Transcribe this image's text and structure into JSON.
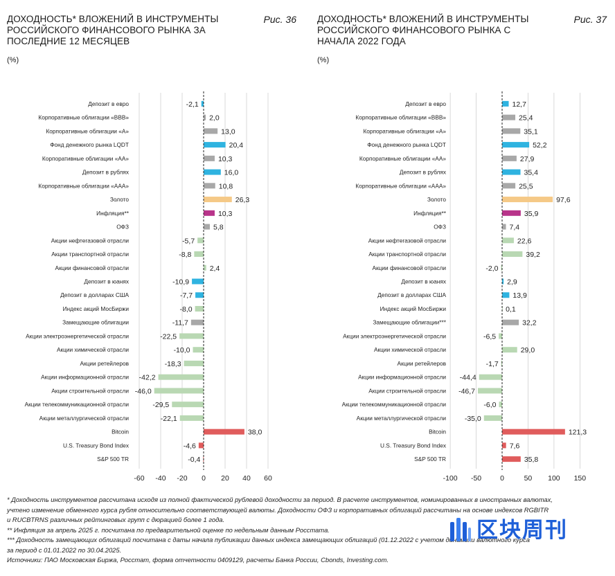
{
  "chart_data": [
    {
      "type": "bar",
      "title": "ДОХОДНОСТЬ* ВЛОЖЕНИЙ В ИНСТРУМЕНТЫ РОССИЙСКОГО ФИНАНСОВОГО РЫНКА ЗА ПОСЛЕДНИЕ 12 МЕСЯЦЕВ",
      "figure": "Рис. 36",
      "unit": "(%)",
      "orientation": "horizontal",
      "xlim": [
        -60,
        60
      ],
      "ticks": [
        -60,
        -40,
        -20,
        0,
        20,
        40,
        60
      ],
      "grid": true,
      "categories": [
        "Депозит в евро",
        "Корпоративные облигации «ВВВ»",
        "Корпоративные облигации «А»",
        "Фонд денежного рынка LQDT",
        "Корпоративные облигации «АА»",
        "Депозит в рублях",
        "Корпоративные облигации «ААА»",
        "Золото",
        "Инфляция**",
        "ОФЗ",
        "Акции нефтегазовой отрасли",
        "Акции транспортной отрасли",
        "Акции финансовой отрасли",
        "Депозит в юанях",
        "Депозит в долларах США",
        "Индекс акций МосБиржи",
        "Замещающие облигации",
        "Акции электроэнергетической отрасли",
        "Акции химической отрасли",
        "Акции ретейлеров",
        "Акции информационной отрасли",
        "Акции строительной отрасли",
        "Акции телекоммуникационной отрасли",
        "Акции металлургической отрасли",
        "Bitcoin",
        "U.S. Treasury Bond Index",
        "S&P 500 TR"
      ],
      "values": [
        -2.1,
        2.0,
        13.0,
        20.4,
        10.3,
        16.0,
        10.8,
        26.3,
        10.3,
        5.8,
        -5.7,
        -8.8,
        2.4,
        -10.9,
        -7.7,
        -8.0,
        -11.7,
        -22.5,
        -10.0,
        -18.3,
        -42.2,
        -46.0,
        -29.5,
        -22.1,
        38.0,
        -4.6,
        -0.4
      ],
      "value_labels": [
        "-2,1",
        "2,0",
        "13,0",
        "20,4",
        "10,3",
        "16,0",
        "10,8",
        "26,3",
        "10,3",
        "5,8",
        "-5,7",
        "-8,8",
        "2,4",
        "-10,9",
        "-7,7",
        "-8,0",
        "-11,7",
        "-22,5",
        "-10,0",
        "-18,3",
        "-42,2",
        "-46,0",
        "-29,5",
        "-22,1",
        "38,0",
        "-4,6",
        "-0,4"
      ],
      "colors": [
        "#2fb3e0",
        "#a8a8a8",
        "#a8a8a8",
        "#2fb3e0",
        "#a8a8a8",
        "#2fb3e0",
        "#a8a8a8",
        "#f5c987",
        "#b8348a",
        "#a8a8a8",
        "#b9d8b3",
        "#b9d8b3",
        "#b9d8b3",
        "#2fb3e0",
        "#2fb3e0",
        "#b9d8b3",
        "#a8a8a8",
        "#b9d8b3",
        "#b9d8b3",
        "#b9d8b3",
        "#b9d8b3",
        "#b9d8b3",
        "#b9d8b3",
        "#b9d8b3",
        "#e05c5c",
        "#e05c5c",
        "#e05c5c"
      ]
    },
    {
      "type": "bar",
      "title": "ДОХОДНОСТЬ* ВЛОЖЕНИЙ В ИНСТРУМЕНТЫ РОССИЙСКОГО ФИНАНСОВОГО РЫНКА С НАЧАЛА 2022 ГОДА",
      "figure": "Рис. 37",
      "unit": "(%)",
      "orientation": "horizontal",
      "xlim": [
        -100,
        150
      ],
      "ticks": [
        -100,
        -50,
        0,
        50,
        100,
        150
      ],
      "grid": true,
      "categories": [
        "Депозит в евро",
        "Корпоративные облигации «ВВВ»",
        "Корпоративные облигации «А»",
        "Фонд денежного рынка LQDT",
        "Корпоративные облигации «АА»",
        "Депозит в рублях",
        "Корпоративные облигации «ААА»",
        "Золото",
        "Инфляция**",
        "ОФЗ",
        "Акции нефтегазовой отрасли",
        "Акции транспортной отрасли",
        "Акции финансовой отрасли",
        "Депозит в юанях",
        "Депозит в долларах США",
        "Индекс акций МосБиржи",
        "Замещающие облигации***",
        "Акции электроэнергетической отрасли",
        "Акции химической отрасли",
        "Акции ретейлеров",
        "Акции информационной отрасли",
        "Акции строительной отрасли",
        "Акции телекоммуникационной отрасли",
        "Акции металлургической отрасли",
        "Bitcoin",
        "U.S. Treasury Bond Index",
        "S&P 500 TR"
      ],
      "values": [
        12.7,
        25.4,
        35.1,
        52.2,
        27.9,
        35.4,
        25.5,
        97.6,
        35.9,
        7.4,
        22.6,
        39.2,
        -2.0,
        2.9,
        13.9,
        0.1,
        32.2,
        -6.5,
        29.0,
        -1.7,
        -44.4,
        -46.7,
        -6.0,
        -35.0,
        121.3,
        7.6,
        35.8
      ],
      "value_labels": [
        "12,7",
        "25,4",
        "35,1",
        "52,2",
        "27,9",
        "35,4",
        "25,5",
        "97,6",
        "35,9",
        "7,4",
        "22,6",
        "39,2",
        "-2,0",
        "2,9",
        "13,9",
        "0,1",
        "32,2",
        "-6,5",
        "29,0",
        "-1,7",
        "-44,4",
        "-46,7",
        "-6,0",
        "-35,0",
        "121,3",
        "7,6",
        "35,8"
      ],
      "colors": [
        "#2fb3e0",
        "#a8a8a8",
        "#a8a8a8",
        "#2fb3e0",
        "#a8a8a8",
        "#2fb3e0",
        "#a8a8a8",
        "#f5c987",
        "#b8348a",
        "#a8a8a8",
        "#b9d8b3",
        "#b9d8b3",
        "#b9d8b3",
        "#2fb3e0",
        "#2fb3e0",
        "#b9d8b3",
        "#a8a8a8",
        "#b9d8b3",
        "#b9d8b3",
        "#b9d8b3",
        "#b9d8b3",
        "#b9d8b3",
        "#b9d8b3",
        "#b9d8b3",
        "#e05c5c",
        "#e05c5c",
        "#e05c5c"
      ]
    }
  ],
  "notes": [
    "* Доходность инструментов рассчитана исходя из полной фактической рублевой доходности за период. В расчете инструментов, номинированных в иностранных валютах,",
    "учтено изменение обменного курса рубля относительно соответствующей валюты. Доходности ОФЗ и корпоративных облигаций рассчитаны на основе индексов RGBITR",
    "и RUCBTRNS различных рейтинговых групп с дюрацией более 1 года.",
    "** Инфляция за апрель 2025 г. посчитана по предварительной оценке по недельным данным Росстата.",
    "*** Доходность замещающих облигаций посчитана с даты начала публикации данных индекса замещающих облигаций (01.12.2022 с учетом динамики валютного курса",
    "за период с 01.01.2022 по 30.04.2025.",
    "Источники: ПАО Московская Биржа, Росстат, форма отчетности 0409129, расчеты Банка России, Cbonds, Investing.com."
  ],
  "watermark": {
    "text": "区块周刊",
    "logo_icon": "blockchain-logo-icon",
    "color": "#1e5fd8"
  }
}
